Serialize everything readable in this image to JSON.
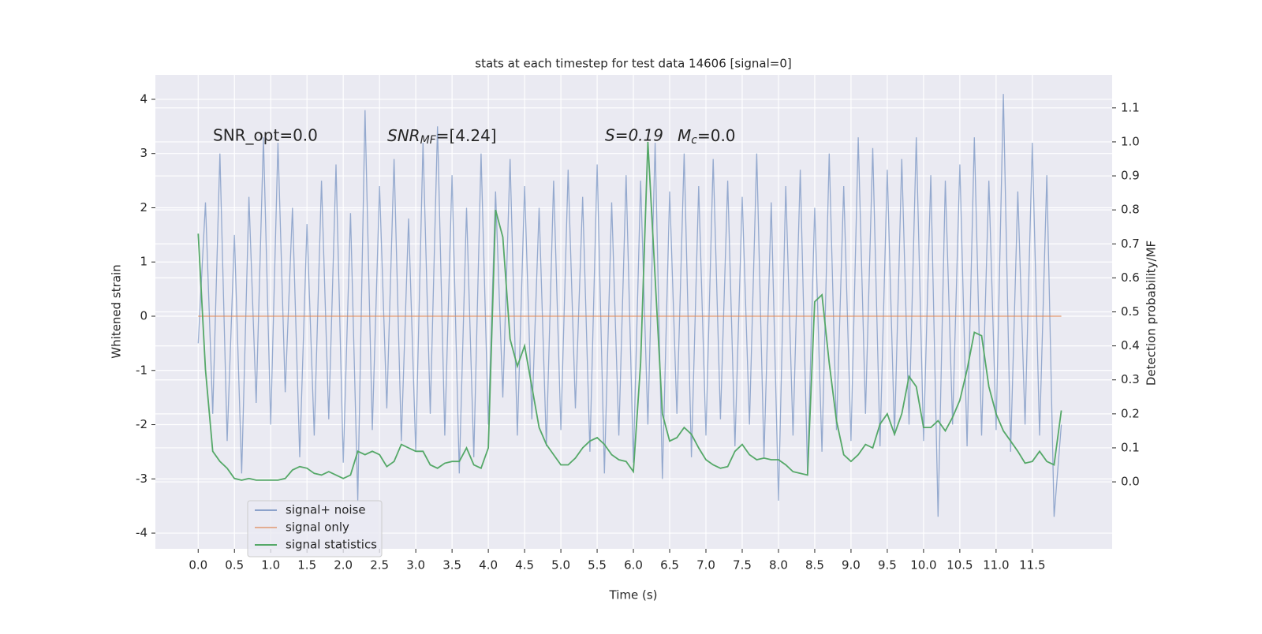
{
  "chart_data": {
    "type": "line",
    "title": "stats at each timestep for test data 14606 [signal=0]",
    "xlabel": "Time (s)",
    "ylabel": "Whitened strain",
    "y2label": "Detection probability/MF",
    "annotations": [
      "SNR_opt=0.0",
      {
        "base": "SNR",
        "sub": "MF",
        "rest": "=[4.24]"
      },
      "S=0.19",
      {
        "base": "M",
        "sub": "c",
        "rest": "=0.0"
      }
    ],
    "x": [
      0,
      0.1,
      0.2,
      0.3,
      0.4,
      0.5,
      0.6,
      0.7,
      0.8,
      0.9,
      1,
      1.1,
      1.2,
      1.3,
      1.4,
      1.5,
      1.6,
      1.7,
      1.8,
      1.9,
      2,
      2.1,
      2.2,
      2.3,
      2.4,
      2.5,
      2.6,
      2.7,
      2.8,
      2.9,
      3,
      3.1,
      3.2,
      3.3,
      3.4,
      3.5,
      3.6,
      3.7,
      3.8,
      3.9,
      4,
      4.1,
      4.2,
      4.3,
      4.4,
      4.5,
      4.6,
      4.7,
      4.8,
      4.9,
      5,
      5.1,
      5.2,
      5.3,
      5.4,
      5.5,
      5.6,
      5.7,
      5.8,
      5.9,
      6,
      6.1,
      6.2,
      6.3,
      6.4,
      6.5,
      6.6,
      6.7,
      6.8,
      6.9,
      7,
      7.1,
      7.2,
      7.3,
      7.4,
      7.5,
      7.6,
      7.7,
      7.8,
      7.9,
      8,
      8.1,
      8.2,
      8.3,
      8.4,
      8.5,
      8.6,
      8.7,
      8.8,
      8.9,
      9,
      9.1,
      9.2,
      9.3,
      9.4,
      9.5,
      9.6,
      9.7,
      9.8,
      9.9,
      10,
      10.1,
      10.2,
      10.3,
      10.4,
      10.5,
      10.6,
      10.7,
      10.8,
      10.9,
      11,
      11.1,
      11.2,
      11.3,
      11.4,
      11.5,
      11.6,
      11.7,
      11.8,
      11.9
    ],
    "series": [
      {
        "name": "signal+ noise",
        "color": "#4c72b0",
        "axis": "y",
        "values": [
          -0.5,
          2.1,
          -1.8,
          3.0,
          -2.3,
          1.5,
          -2.9,
          2.2,
          -1.6,
          3.3,
          -2.0,
          3.2,
          -1.4,
          2.0,
          -2.6,
          1.7,
          -2.2,
          2.5,
          -1.9,
          2.8,
          -2.7,
          1.9,
          -3.4,
          3.8,
          -2.1,
          2.4,
          -1.7,
          2.9,
          -2.3,
          1.8,
          -2.5,
          3.2,
          -1.8,
          3.5,
          -2.2,
          2.6,
          -2.9,
          2.0,
          -2.6,
          3.0,
          -2.0,
          2.3,
          -1.5,
          2.9,
          -2.2,
          2.4,
          -1.9,
          2.0,
          -2.4,
          2.5,
          -2.1,
          2.7,
          -1.7,
          2.2,
          -2.5,
          2.8,
          -2.9,
          2.1,
          -2.2,
          2.6,
          -2.7,
          2.5,
          -2.0,
          3.2,
          -3.0,
          2.3,
          -1.8,
          3.0,
          -2.6,
          2.4,
          -2.2,
          2.9,
          -1.9,
          2.5,
          -2.4,
          2.2,
          -2.0,
          3.0,
          -2.6,
          2.1,
          -3.4,
          2.4,
          -2.2,
          2.7,
          -2.9,
          2.0,
          -2.5,
          3.0,
          -2.1,
          2.4,
          -2.3,
          3.3,
          -1.8,
          3.1,
          -2.4,
          2.7,
          -2.2,
          2.9,
          -2.0,
          3.3,
          -2.3,
          2.6,
          -3.7,
          2.5,
          -2.0,
          2.8,
          -2.4,
          3.3,
          -2.2,
          2.5,
          -2.1,
          4.1,
          -2.5,
          2.3,
          -2.0,
          3.2,
          -2.2,
          2.6,
          -3.7,
          -2.0
        ]
      },
      {
        "name": "signal only",
        "color": "#dd8452",
        "axis": "y",
        "values": [
          0,
          0,
          0,
          0,
          0,
          0,
          0,
          0,
          0,
          0,
          0,
          0,
          0,
          0,
          0,
          0,
          0,
          0,
          0,
          0,
          0,
          0,
          0,
          0,
          0,
          0,
          0,
          0,
          0,
          0,
          0,
          0,
          0,
          0,
          0,
          0,
          0,
          0,
          0,
          0,
          0,
          0,
          0,
          0,
          0,
          0,
          0,
          0,
          0,
          0,
          0,
          0,
          0,
          0,
          0,
          0,
          0,
          0,
          0,
          0,
          0,
          0,
          0,
          0,
          0,
          0,
          0,
          0,
          0,
          0,
          0,
          0,
          0,
          0,
          0,
          0,
          0,
          0,
          0,
          0,
          0,
          0,
          0,
          0,
          0,
          0,
          0,
          0,
          0,
          0,
          0,
          0,
          0,
          0,
          0,
          0,
          0,
          0,
          0,
          0,
          0,
          0,
          0,
          0,
          0,
          0,
          0,
          0,
          0,
          0,
          0,
          0,
          0,
          0,
          0,
          0,
          0,
          0,
          0,
          0
        ]
      },
      {
        "name": "signal statistics",
        "color": "#55a868",
        "axis": "y2",
        "values": [
          0.73,
          0.33,
          0.09,
          0.06,
          0.04,
          0.01,
          0.005,
          0.01,
          0.005,
          0.005,
          0.005,
          0.005,
          0.01,
          0.035,
          0.045,
          0.04,
          0.025,
          0.02,
          0.03,
          0.02,
          0.01,
          0.02,
          0.09,
          0.08,
          0.09,
          0.08,
          0.045,
          0.06,
          0.11,
          0.1,
          0.09,
          0.09,
          0.05,
          0.04,
          0.055,
          0.06,
          0.06,
          0.1,
          0.05,
          0.04,
          0.1,
          0.8,
          0.72,
          0.42,
          0.34,
          0.4,
          0.28,
          0.16,
          0.11,
          0.08,
          0.05,
          0.05,
          0.07,
          0.1,
          0.12,
          0.13,
          0.11,
          0.08,
          0.065,
          0.06,
          0.03,
          0.35,
          1.0,
          0.6,
          0.2,
          0.12,
          0.13,
          0.16,
          0.14,
          0.1,
          0.065,
          0.05,
          0.04,
          0.045,
          0.09,
          0.11,
          0.08,
          0.065,
          0.07,
          0.065,
          0.065,
          0.05,
          0.03,
          0.025,
          0.02,
          0.53,
          0.55,
          0.35,
          0.18,
          0.08,
          0.06,
          0.08,
          0.11,
          0.1,
          0.17,
          0.2,
          0.14,
          0.2,
          0.31,
          0.28,
          0.16,
          0.16,
          0.18,
          0.15,
          0.19,
          0.24,
          0.33,
          0.44,
          0.43,
          0.28,
          0.2,
          0.15,
          0.12,
          0.09,
          0.055,
          0.06,
          0.09,
          0.06,
          0.05,
          0.21
        ]
      }
    ],
    "xlim": [
      -0.59,
      12.6
    ],
    "ylim": [
      -4.29,
      4.45
    ],
    "y2lim": [
      -0.197,
      1.197
    ],
    "xticks": [
      {
        "value": 0,
        "label": "0.0"
      },
      0.5,
      {
        "value": 1,
        "label": "1.0"
      },
      1.5,
      {
        "value": 2,
        "label": "2.0"
      },
      2.5,
      {
        "value": 3,
        "label": "3.0"
      },
      3.5,
      {
        "value": 4,
        "label": "4.0"
      },
      4.5,
      {
        "value": 5,
        "label": "5.0"
      },
      5.5,
      {
        "value": 6,
        "label": "6.0"
      },
      6.5,
      {
        "value": 7,
        "label": "7.0"
      },
      7.5,
      {
        "value": 8,
        "label": "8.0"
      },
      8.5,
      {
        "value": 9,
        "label": "9.0"
      },
      9.5,
      {
        "value": 10,
        "label": "10.0"
      },
      10.5,
      {
        "value": 11,
        "label": "11.0"
      },
      11.5
    ],
    "yticks": [
      -4,
      -3,
      -2,
      -1,
      0,
      1,
      2,
      3,
      4
    ],
    "y2ticks": [
      {
        "value": 0,
        "label": "0.0"
      },
      0.1,
      0.2,
      0.3,
      0.4,
      0.5,
      0.6,
      0.7,
      0.8,
      0.9,
      {
        "value": 1,
        "label": "1.0"
      },
      1.1
    ],
    "grid": true,
    "legend": "lower left"
  }
}
